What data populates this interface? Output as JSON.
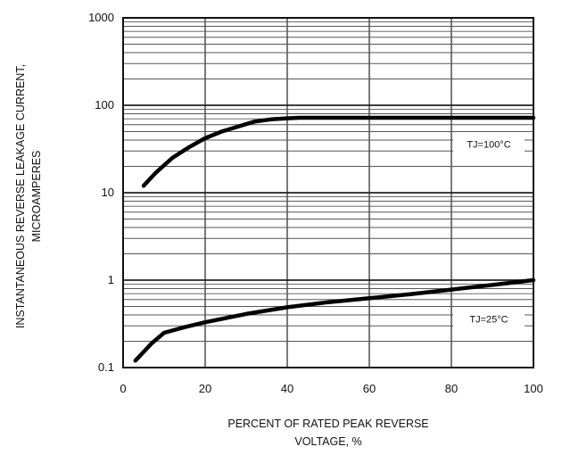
{
  "chart_data": {
    "type": "line",
    "title": "",
    "xlabel": [
      "PERCENT OF RATED PEAK REVERSE",
      "VOLTAGE, %"
    ],
    "ylabel": [
      "INSTANTANEOUS REVERSE LEAKAGE CURRENT,",
      "MICROAMPERES"
    ],
    "x_ticks": [
      "0",
      "20",
      "40",
      "60",
      "80",
      "100"
    ],
    "y_ticks": [
      "0.1",
      "1",
      "10",
      "100",
      "1000"
    ],
    "xlim": [
      0,
      100
    ],
    "ylim": [
      0.1,
      1000
    ],
    "y_scale": "log",
    "grid": true,
    "series": [
      {
        "name": "TJ=100°C",
        "x": [
          5,
          8,
          12,
          16,
          20,
          24,
          28,
          32,
          36,
          40,
          43,
          100
        ],
        "y": [
          12,
          17,
          25,
          33,
          42,
          50,
          57,
          65,
          69,
          71,
          72,
          72
        ]
      },
      {
        "name": "TJ=25°C",
        "x": [
          3,
          7,
          10,
          15,
          20,
          30,
          40,
          50,
          60,
          70,
          80,
          90,
          100
        ],
        "y": [
          0.12,
          0.19,
          0.25,
          0.29,
          0.33,
          0.41,
          0.49,
          0.56,
          0.62,
          0.69,
          0.78,
          0.88,
          1.0
        ]
      }
    ],
    "annotations": [
      {
        "text": "TJ=100°C",
        "x": 90,
        "y": 36
      },
      {
        "text": "TJ=25°C",
        "x": 90,
        "y": 0.36
      }
    ]
  }
}
